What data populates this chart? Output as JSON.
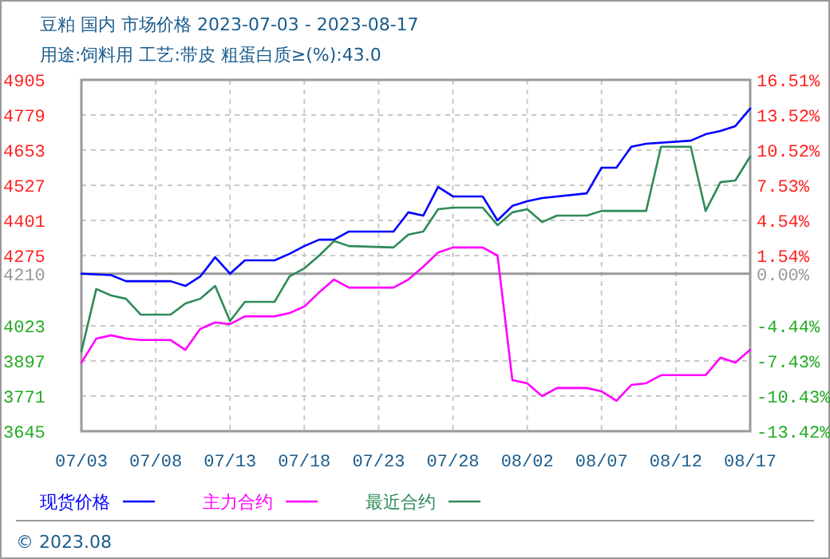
{
  "chart_data": {
    "type": "line",
    "title": "豆粕 国内 市场价格 2023-07-03 - 2023-08-17",
    "subtitle": "用途:饲料用 工艺:带皮 粗蛋白质≥(%):43.0",
    "annotations": [
      "© 2023.08"
    ],
    "xlim": [
      "2023-07-03",
      "2023-08-17"
    ],
    "xticks": [
      {
        "value": "2023-07-03",
        "label": "07/03"
      },
      {
        "value": "2023-07-08",
        "label": "07/08"
      },
      {
        "value": "2023-07-13",
        "label": "07/13"
      },
      {
        "value": "2023-07-18",
        "label": "07/18"
      },
      {
        "value": "2023-07-23",
        "label": "07/23"
      },
      {
        "value": "2023-07-28",
        "label": "07/28"
      },
      {
        "value": "2023-08-02",
        "label": "08/02"
      },
      {
        "value": "2023-08-07",
        "label": "08/07"
      },
      {
        "value": "2023-08-12",
        "label": "08/12"
      },
      {
        "value": "2023-08-17",
        "label": "08/17"
      }
    ],
    "ylim": [
      3645,
      4905
    ],
    "yticks": [
      3645,
      3771,
      3897,
      4023,
      4210,
      4275,
      4401,
      4527,
      4653,
      4779,
      4905
    ],
    "y2lim": [
      -13.42,
      16.51
    ],
    "y2ticks": [
      {
        "value": -13.42,
        "label": "-13.42%"
      },
      {
        "value": -10.43,
        "label": "-10.43%"
      },
      {
        "value": -7.43,
        "label": "-7.43%"
      },
      {
        "value": -4.44,
        "label": "-4.44%"
      },
      {
        "value": 0,
        "label": "0.00%"
      },
      {
        "value": 1.54,
        "label": "1.54%"
      },
      {
        "value": 4.54,
        "label": "4.54%"
      },
      {
        "value": 7.53,
        "label": "7.53%"
      },
      {
        "value": 10.52,
        "label": "10.52%"
      },
      {
        "value": 13.52,
        "label": "13.52%"
      },
      {
        "value": 16.51,
        "label": "16.51%"
      }
    ],
    "ref_lines": [
      {
        "axis": "y",
        "value": 4210,
        "color": "#999999",
        "line_style": "solid"
      }
    ],
    "grid": true,
    "legend": "bottom",
    "line_style": "solid",
    "marker": "none",
    "series": [
      {
        "name": "现货价格",
        "color": "#0000ff",
        "x": [
          "2023-07-03",
          "2023-07-05",
          "2023-07-06",
          "2023-07-09",
          "2023-07-10",
          "2023-07-11",
          "2023-07-12",
          "2023-07-13",
          "2023-07-14",
          "2023-07-16",
          "2023-07-17",
          "2023-07-18",
          "2023-07-19",
          "2023-07-20",
          "2023-07-21",
          "2023-07-24",
          "2023-07-25",
          "2023-07-26",
          "2023-07-27",
          "2023-07-28",
          "2023-07-30",
          "2023-07-31",
          "2023-08-01",
          "2023-08-02",
          "2023-08-03",
          "2023-08-06",
          "2023-08-07",
          "2023-08-08",
          "2023-08-09",
          "2023-08-10",
          "2023-08-13",
          "2023-08-14",
          "2023-08-15",
          "2023-08-16",
          "2023-08-17"
        ],
        "values": [
          4210,
          4205,
          4183,
          4183,
          4166,
          4200,
          4269,
          4210,
          4258,
          4258,
          4281,
          4309,
          4332,
          4332,
          4361,
          4361,
          4430,
          4418,
          4521,
          4487,
          4487,
          4401,
          4453,
          4470,
          4481,
          4498,
          4590,
          4590,
          4665,
          4676,
          4687,
          4710,
          4722,
          4739,
          4802
        ]
      },
      {
        "name": "主力合约",
        "color": "#ff00ff",
        "x": [
          "2023-07-03",
          "2023-07-04",
          "2023-07-05",
          "2023-07-06",
          "2023-07-07",
          "2023-07-09",
          "2023-07-10",
          "2023-07-11",
          "2023-07-12",
          "2023-07-13",
          "2023-07-14",
          "2023-07-16",
          "2023-07-17",
          "2023-07-18",
          "2023-07-19",
          "2023-07-20",
          "2023-07-21",
          "2023-07-24",
          "2023-07-25",
          "2023-07-26",
          "2023-07-27",
          "2023-07-28",
          "2023-07-30",
          "2023-07-31",
          "2023-08-01",
          "2023-08-02",
          "2023-08-03",
          "2023-08-04",
          "2023-08-06",
          "2023-08-07",
          "2023-08-08",
          "2023-08-09",
          "2023-08-10",
          "2023-08-11",
          "2023-08-14",
          "2023-08-15",
          "2023-08-16",
          "2023-08-17"
        ],
        "values": [
          3891,
          3977,
          3989,
          3977,
          3972,
          3972,
          3937,
          4012,
          4035,
          4029,
          4057,
          4057,
          4069,
          4092,
          4143,
          4189,
          4160,
          4160,
          4189,
          4235,
          4286,
          4304,
          4304,
          4275,
          3828,
          3817,
          3771,
          3800,
          3800,
          3788,
          3754,
          3811,
          3817,
          3846,
          3846,
          3909,
          3891,
          3937
        ]
      },
      {
        "name": "最近合约",
        "color": "#2e8b57",
        "x": [
          "2023-07-03",
          "2023-07-04",
          "2023-07-05",
          "2023-07-06",
          "2023-07-07",
          "2023-07-09",
          "2023-07-10",
          "2023-07-11",
          "2023-07-12",
          "2023-07-13",
          "2023-07-14",
          "2023-07-16",
          "2023-07-17",
          "2023-07-18",
          "2023-07-19",
          "2023-07-20",
          "2023-07-21",
          "2023-07-24",
          "2023-07-25",
          "2023-07-26",
          "2023-07-27",
          "2023-07-28",
          "2023-07-30",
          "2023-07-31",
          "2023-08-01",
          "2023-08-02",
          "2023-08-03",
          "2023-08-04",
          "2023-08-06",
          "2023-08-07",
          "2023-08-10",
          "2023-08-11",
          "2023-08-13",
          "2023-08-14",
          "2023-08-15",
          "2023-08-16",
          "2023-08-17"
        ],
        "values": [
          3931,
          4155,
          4132,
          4120,
          4063,
          4063,
          4103,
          4120,
          4166,
          4040,
          4109,
          4109,
          4200,
          4229,
          4275,
          4327,
          4309,
          4304,
          4350,
          4361,
          4441,
          4447,
          4447,
          4384,
          4430,
          4441,
          4395,
          4418,
          4418,
          4435,
          4435,
          4665,
          4665,
          4435,
          4538,
          4544,
          4630
        ]
      }
    ]
  }
}
